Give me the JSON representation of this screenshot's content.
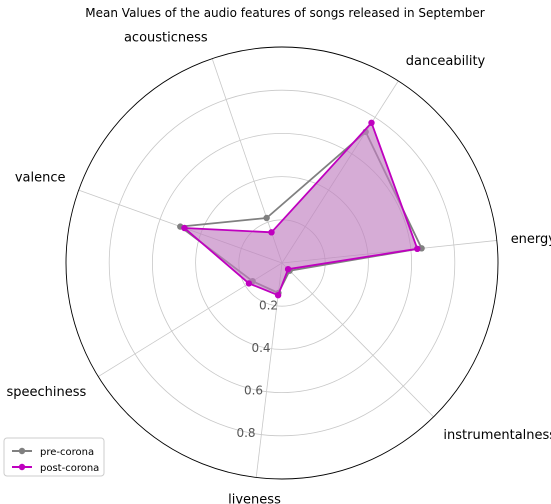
{
  "chart_data": {
    "type": "radar",
    "title": "Mean Values of the audio features of songs released in September",
    "axes": [
      "energy",
      "danceability",
      "acousticness",
      "valence",
      "speechiness",
      "liveness",
      "instrumentalness"
    ],
    "rticks": [
      "0.2",
      "0.4",
      "0.6",
      "0.8"
    ],
    "rlim": [
      0,
      1
    ],
    "grid": true,
    "legend_position": "bottom-left",
    "series": [
      {
        "name": "pre-corona",
        "color": "#808080",
        "values": [
          0.65,
          0.72,
          0.22,
          0.5,
          0.16,
          0.14,
          0.05
        ]
      },
      {
        "name": "post-corona",
        "color": "#bf00bf",
        "values": [
          0.63,
          0.77,
          0.15,
          0.48,
          0.18,
          0.15,
          0.04
        ]
      }
    ],
    "fill_color": "#c080c0"
  }
}
